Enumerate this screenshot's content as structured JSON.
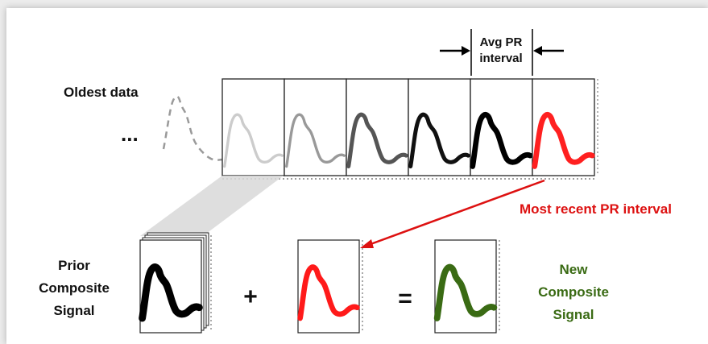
{
  "labels": {
    "oldest_data": "Oldest data",
    "ellipsis": "...",
    "avg_pr_line1": "Avg PR",
    "avg_pr_line2": "interval",
    "most_recent": "Most recent PR interval",
    "prior_line1": "Prior",
    "prior_line2": "Composite",
    "prior_line3": "Signal",
    "plus": "+",
    "equals": "=",
    "new_line1": "New",
    "new_line2": "Composite",
    "new_line3": "Signal"
  },
  "history_frames": [
    {
      "stroke": "#cccccc",
      "weight": "thin"
    },
    {
      "stroke": "#999999",
      "weight": "thin"
    },
    {
      "stroke": "#555555",
      "weight": "medium"
    },
    {
      "stroke": "#111111",
      "weight": "medium"
    },
    {
      "stroke": "#000000",
      "weight": "thick"
    },
    {
      "stroke": "#ff2020",
      "weight": "thick"
    }
  ],
  "colors": {
    "most_recent_red": "#dd1111",
    "new_composite_green": "#3a6b14",
    "prior_black": "#000000"
  }
}
